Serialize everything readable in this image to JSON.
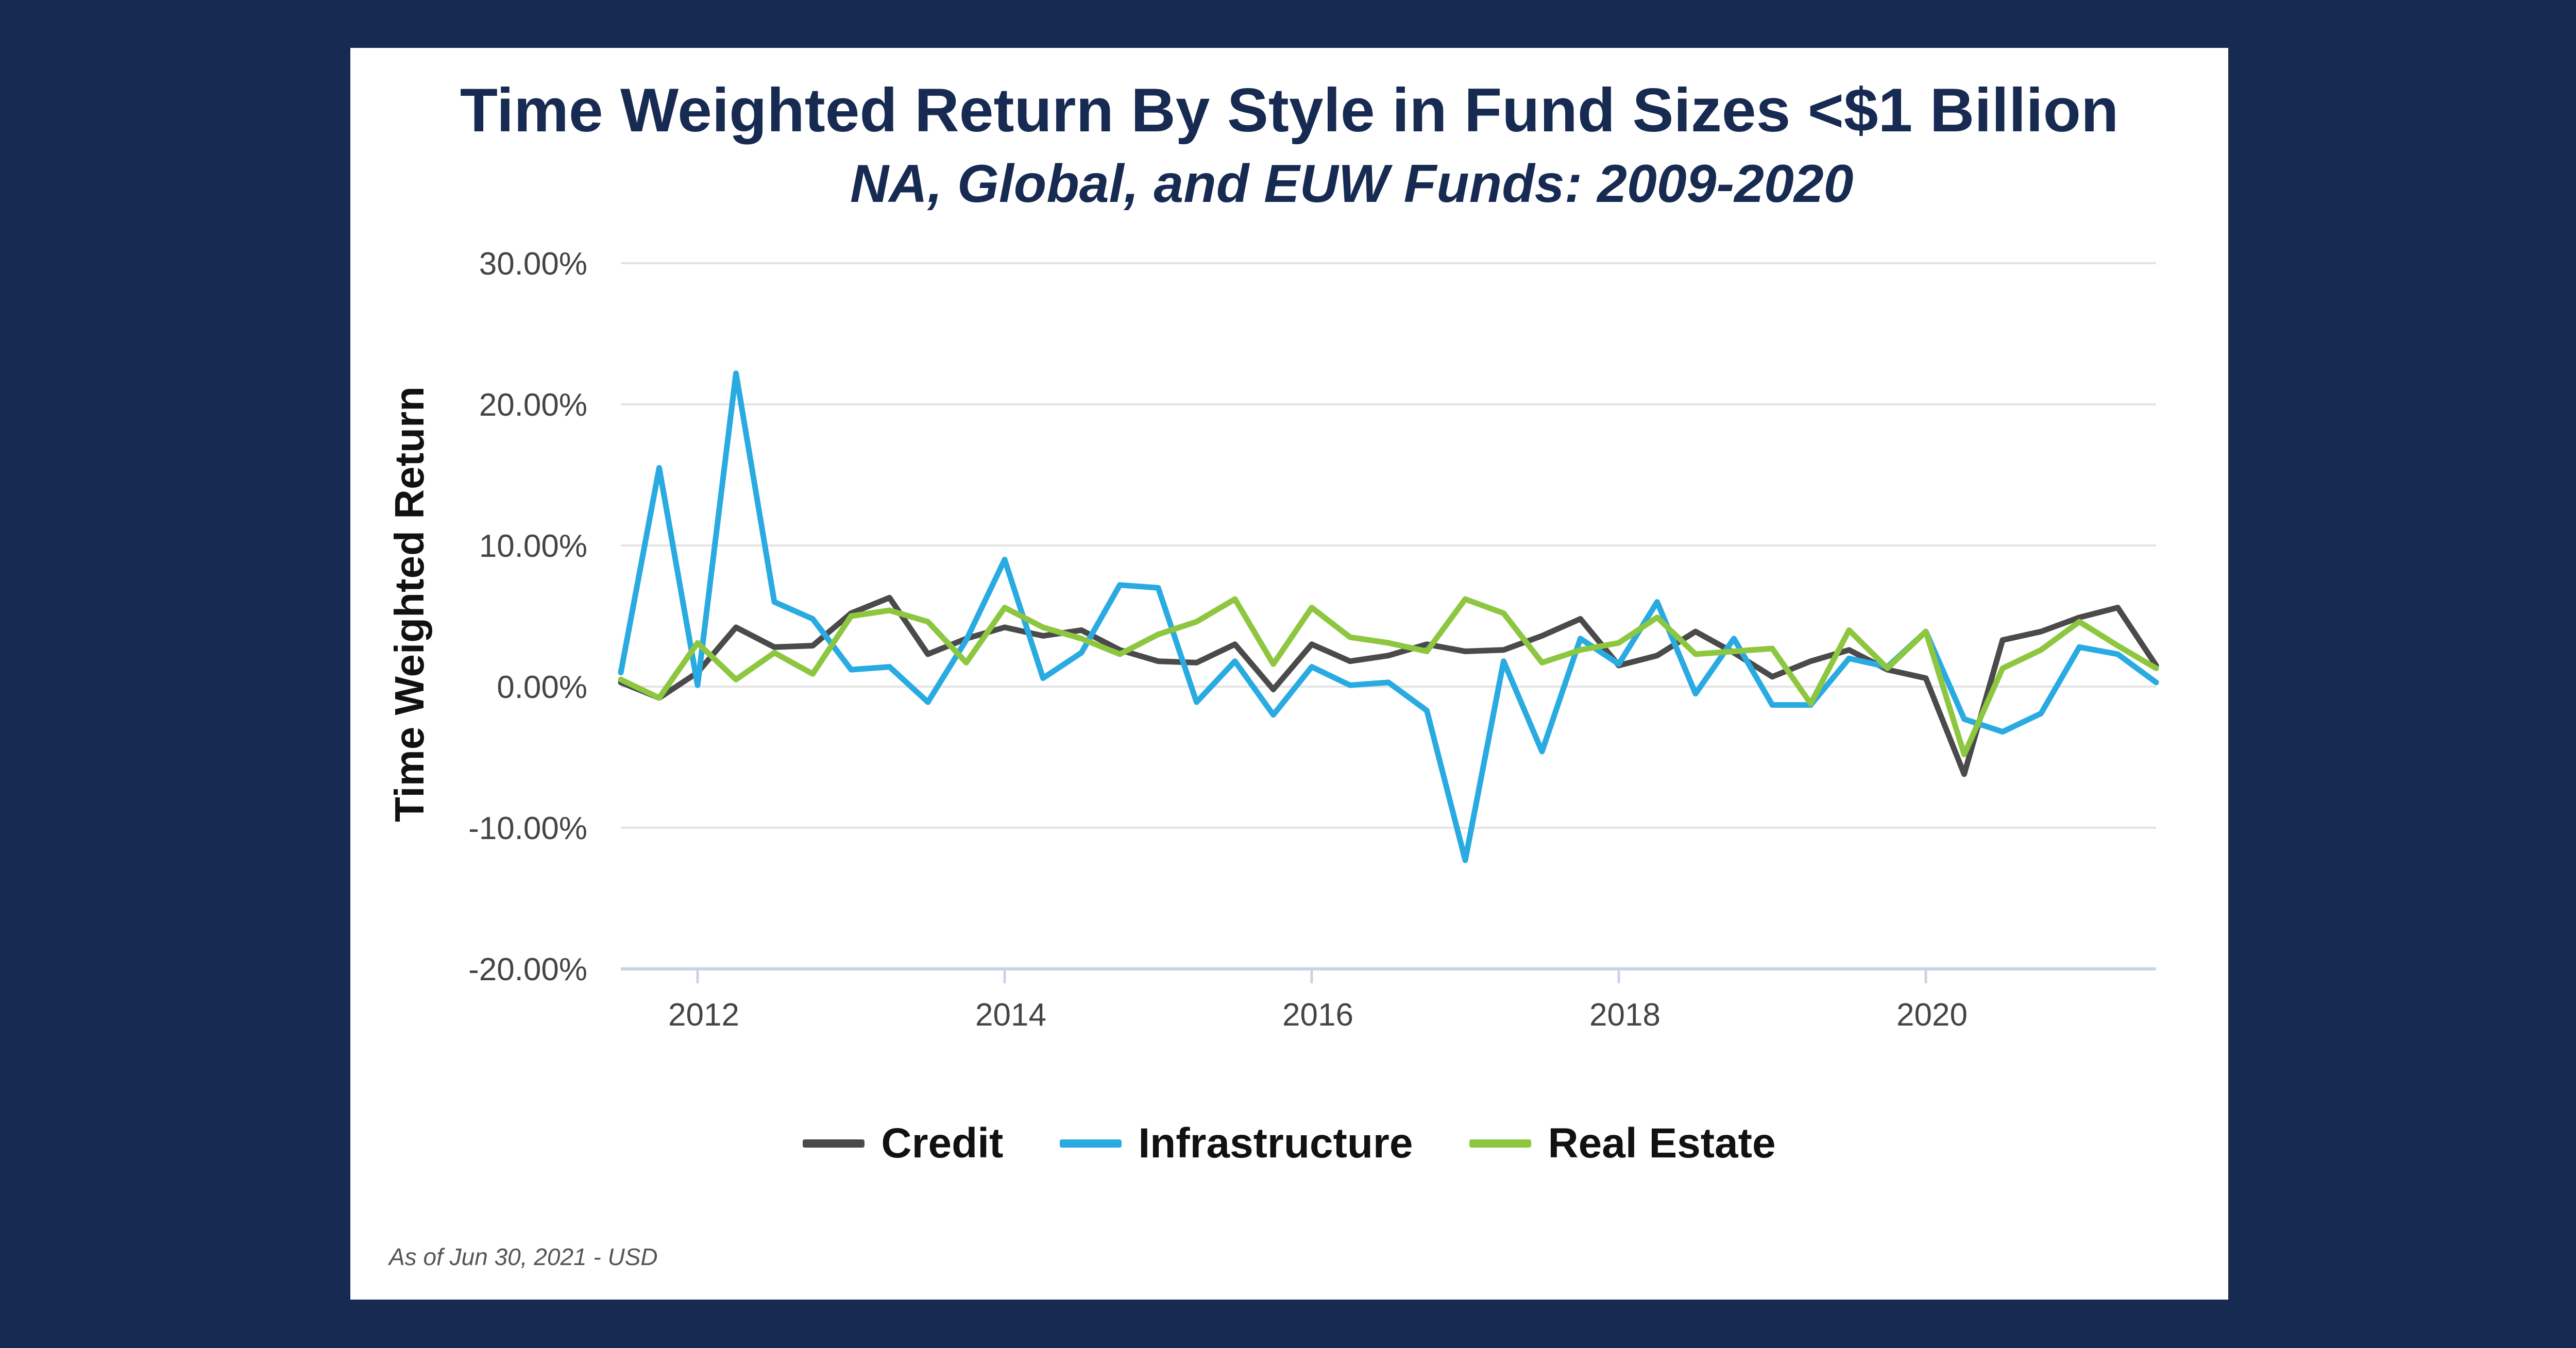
{
  "chart_data": {
    "type": "line",
    "title": "Time Weighted Return By Style in Fund Sizes <$1 Billion",
    "subtitle": "NA, Global, and EUW Funds: 2009-2020",
    "ylabel": "Time Weighted Return",
    "xlabel": "",
    "xlim": [
      2011.5,
      2021.5
    ],
    "ylim": [
      -20,
      30
    ],
    "y_ticks": [
      30,
      20,
      10,
      0,
      -10,
      -20
    ],
    "y_tick_labels": [
      "30.00%",
      "20.00%",
      "10.00%",
      "0.00%",
      "-10.00%",
      "-20.00%"
    ],
    "x_ticks": [
      2012,
      2014,
      2016,
      2018,
      2020
    ],
    "x_tick_labels": [
      "2012",
      "2014",
      "2016",
      "2018",
      "2020"
    ],
    "grid": "horizontal",
    "legend_position": "bottom-center",
    "footnote": "As of Jun 30, 2021 - USD",
    "x": [
      2011.5,
      2011.75,
      2012.0,
      2012.25,
      2012.5,
      2012.75,
      2013.0,
      2013.25,
      2013.5,
      2013.75,
      2014.0,
      2014.25,
      2014.5,
      2014.75,
      2015.0,
      2015.25,
      2015.5,
      2015.75,
      2016.0,
      2016.25,
      2016.5,
      2016.75,
      2017.0,
      2017.25,
      2017.5,
      2017.75,
      2018.0,
      2018.25,
      2018.5,
      2018.75,
      2019.0,
      2019.25,
      2019.5,
      2019.75,
      2020.0,
      2020.25,
      2020.5,
      2020.75,
      2021.0,
      2021.25,
      2021.5
    ],
    "series": [
      {
        "name": "Credit",
        "color": "#4a4a4a",
        "values": [
          0.3,
          -0.8,
          1.0,
          4.2,
          2.8,
          2.9,
          5.2,
          6.3,
          2.3,
          3.4,
          4.2,
          3.6,
          4.0,
          2.6,
          1.8,
          1.7,
          3.0,
          -0.2,
          3.0,
          1.8,
          2.2,
          3.0,
          2.5,
          2.6,
          3.6,
          4.8,
          1.5,
          2.2,
          3.9,
          2.4,
          0.7,
          1.8,
          2.6,
          1.2,
          0.6,
          -6.2,
          3.3,
          3.9,
          4.9,
          5.6,
          1.5
        ]
      },
      {
        "name": "Infrastructure",
        "color": "#29abe2",
        "values": [
          1.0,
          15.5,
          0.1,
          22.2,
          6.0,
          4.8,
          1.2,
          1.4,
          -1.1,
          3.3,
          9.0,
          0.6,
          2.4,
          7.2,
          7.0,
          -1.1,
          1.8,
          -2.0,
          1.4,
          0.1,
          0.3,
          -1.7,
          -12.3,
          1.8,
          -4.6,
          3.4,
          1.6,
          6.0,
          -0.5,
          3.4,
          -1.3,
          -1.3,
          2.0,
          1.4,
          3.9,
          -2.3,
          -3.2,
          -1.9,
          2.8,
          2.3,
          0.3
        ]
      },
      {
        "name": "Real Estate",
        "color": "#8dc63f",
        "values": [
          0.5,
          -0.8,
          3.1,
          0.5,
          2.4,
          0.9,
          5.0,
          5.4,
          4.6,
          1.7,
          5.6,
          4.2,
          3.4,
          2.3,
          3.7,
          4.6,
          6.2,
          1.6,
          5.6,
          3.5,
          3.1,
          2.5,
          6.2,
          5.2,
          1.7,
          2.6,
          3.1,
          4.9,
          2.3,
          2.5,
          2.7,
          -1.2,
          4.0,
          1.3,
          3.9,
          -4.8,
          1.3,
          2.6,
          4.6,
          2.9,
          1.3
        ]
      }
    ]
  }
}
